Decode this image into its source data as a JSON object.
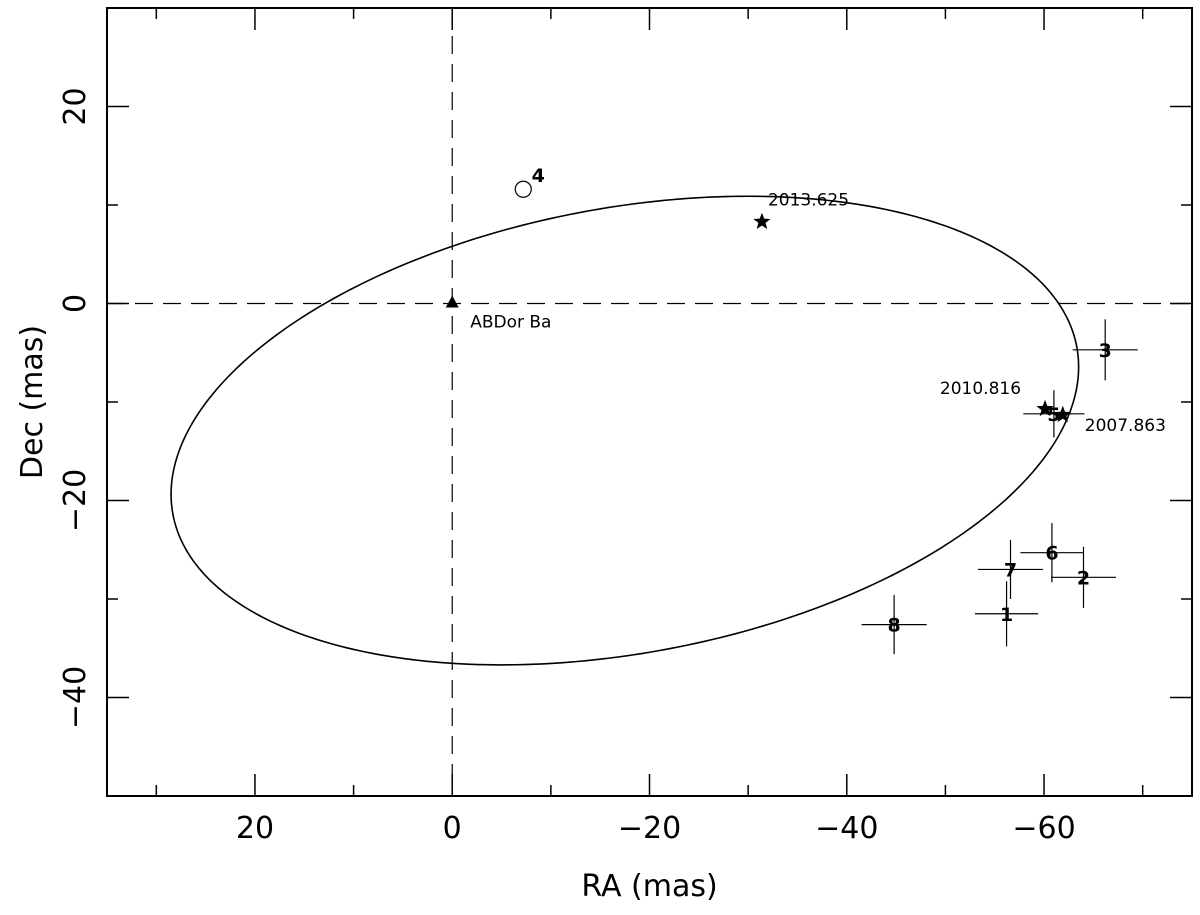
{
  "chart_data": {
    "type": "scatter",
    "title": "",
    "xlabel": "RA (mas)",
    "ylabel": "Dec (mas)",
    "xlim": [
      35,
      -75
    ],
    "ylim": [
      -50,
      30
    ],
    "x_major_ticks": [
      20,
      0,
      -20,
      -40,
      -60
    ],
    "y_major_ticks": [
      20,
      0,
      -20,
      -40
    ],
    "x_minor_step": 10,
    "y_minor_step": 10,
    "grid": false,
    "reference_lines": {
      "x": 0,
      "y": 0,
      "style": "dashed"
    },
    "orbit": {
      "type": "ellipse",
      "center": [
        -17.5,
        -12.9
      ],
      "semi_major": 46.6,
      "semi_minor": 22.6,
      "rotation_deg": -10.5
    },
    "measurements": [
      {
        "label": "1",
        "ra": -56.2,
        "dec": -31.5,
        "ra_err": 3.2,
        "dec_err": 3.3
      },
      {
        "label": "2",
        "ra": -64.0,
        "dec": -27.8,
        "ra_err": 3.3,
        "dec_err": 3.1
      },
      {
        "label": "3",
        "ra": -66.2,
        "dec": -4.7,
        "ra_err": 3.3,
        "dec_err": 3.1
      },
      {
        "label": "5",
        "ra": -61.0,
        "dec": -11.2,
        "ra_err": 3.1,
        "dec_err": 2.4
      },
      {
        "label": "6",
        "ra": -60.8,
        "dec": -25.3,
        "ra_err": 3.2,
        "dec_err": 3.0
      },
      {
        "label": "7",
        "ra": -56.6,
        "dec": -27.0,
        "ra_err": 3.3,
        "dec_err": 3.0
      },
      {
        "label": "8",
        "ra": -44.8,
        "dec": -32.6,
        "ra_err": 3.3,
        "dec_err": 3.0
      }
    ],
    "open_point": {
      "label": "4",
      "ra": -7.2,
      "dec": 11.6
    },
    "reference_star": {
      "label": "ABDor Ba",
      "ra": 0,
      "dec": 0
    },
    "epoch_markers": [
      {
        "label": "2013.625",
        "ra": -31.4,
        "dec": 8.3
      },
      {
        "label": "2010.816",
        "ra": -60.1,
        "dec": -10.7
      },
      {
        "label": "2007.863",
        "ra": -61.9,
        "dec": -11.3
      }
    ]
  }
}
